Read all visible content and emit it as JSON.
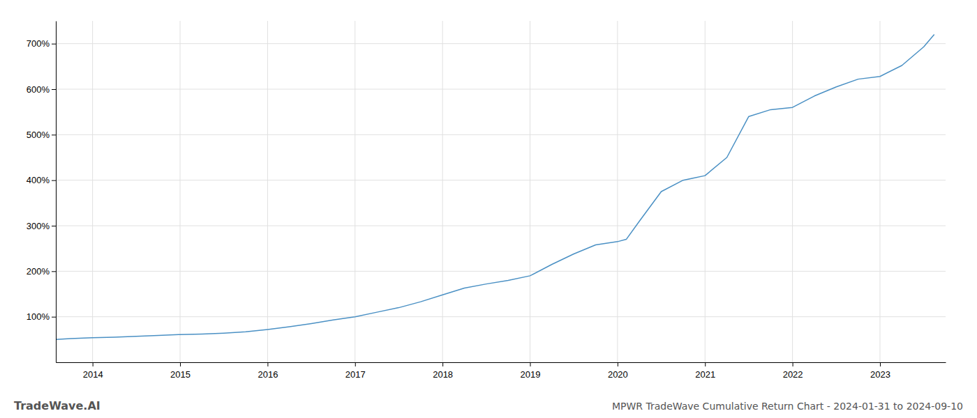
{
  "chart_data": {
    "type": "line",
    "title": "MPWR TradeWave Cumulative Return Chart - 2024-01-31 to 2024-09-10",
    "annotations": [
      "TradeWave.AI"
    ],
    "x": [
      2013.58,
      2013.75,
      2014.0,
      2014.25,
      2014.5,
      2014.75,
      2015.0,
      2015.25,
      2015.5,
      2015.75,
      2016.0,
      2016.25,
      2016.5,
      2016.75,
      2017.0,
      2017.25,
      2017.5,
      2017.75,
      2018.0,
      2018.25,
      2018.5,
      2018.75,
      2019.0,
      2019.25,
      2019.5,
      2019.75,
      2020.0,
      2020.1,
      2020.25,
      2020.5,
      2020.75,
      2021.0,
      2021.25,
      2021.5,
      2021.75,
      2022.0,
      2022.25,
      2022.5,
      2022.75,
      2023.0,
      2023.25,
      2023.5,
      2023.62
    ],
    "values": [
      50,
      52,
      54,
      55,
      57,
      59,
      61,
      62,
      64,
      67,
      72,
      78,
      85,
      93,
      100,
      110,
      120,
      133,
      148,
      163,
      172,
      180,
      190,
      215,
      238,
      258,
      265,
      270,
      310,
      375,
      400,
      410,
      450,
      540,
      555,
      560,
      585,
      605,
      622,
      628,
      652,
      693,
      720
    ],
    "color": "#4a90c4",
    "xlim": [
      2013.58,
      2023.75
    ],
    "xticks": [
      2014,
      2015,
      2016,
      2017,
      2018,
      2019,
      2020,
      2021,
      2022,
      2023
    ],
    "ylim": [
      0,
      750
    ],
    "yticks": [
      {
        "value": 100,
        "label": "100%"
      },
      {
        "value": 200,
        "label": "200%"
      },
      {
        "value": 300,
        "label": "300%"
      },
      {
        "value": 400,
        "label": "400%"
      },
      {
        "value": 500,
        "label": "500%"
      },
      {
        "value": 600,
        "label": "600%"
      },
      {
        "value": 700,
        "label": "700%"
      }
    ],
    "grid": true
  }
}
